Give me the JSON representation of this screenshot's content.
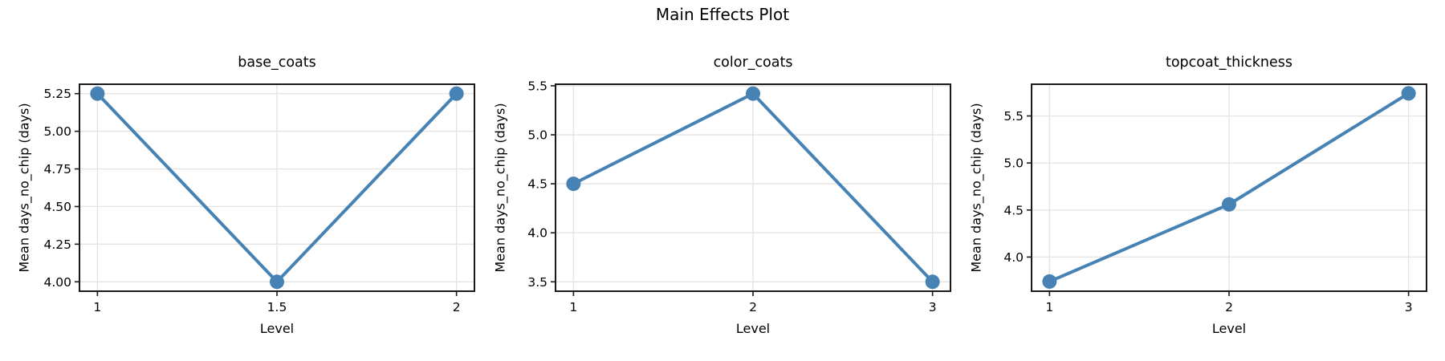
{
  "figure": {
    "title": "Main Effects Plot",
    "shared_xlabel": "Level",
    "shared_ylabel": "Mean days_no_chip (days)",
    "colors": {
      "series": "#4682b4",
      "grid": "#e4e4e4",
      "spine": "#1a1a1a",
      "text": "#000000",
      "background": "#ffffff"
    }
  },
  "chart_data": [
    {
      "type": "line",
      "title": "base_coats",
      "xlabel": "Level",
      "ylabel": "Mean days_no_chip (days)",
      "x": [
        1,
        1.5,
        2
      ],
      "y": [
        5.25,
        4.0,
        5.25
      ],
      "xlim": [
        0.95,
        2.05
      ],
      "ylim": [
        3.9375,
        5.3125
      ],
      "xticks": {
        "values": [
          1,
          1.5,
          2
        ],
        "labels": [
          "1",
          "1.5",
          "2"
        ]
      },
      "yticks": {
        "values": [
          4.0,
          4.25,
          4.5,
          4.75,
          5.0,
          5.25
        ],
        "labels": [
          "4.00",
          "4.25",
          "4.50",
          "4.75",
          "5.00",
          "5.25"
        ]
      },
      "grid": true,
      "legend": "none"
    },
    {
      "type": "line",
      "title": "color_coats",
      "xlabel": "Level",
      "ylabel": "Mean days_no_chip (days)",
      "x": [
        1,
        2,
        3
      ],
      "y": [
        4.5,
        5.42,
        3.5
      ],
      "xlim": [
        0.9,
        3.1
      ],
      "ylim": [
        3.404,
        5.516
      ],
      "xticks": {
        "values": [
          1,
          2,
          3
        ],
        "labels": [
          "1",
          "2",
          "3"
        ]
      },
      "yticks": {
        "values": [
          3.5,
          4.0,
          4.5,
          5.0,
          5.5
        ],
        "labels": [
          "3.5",
          "4.0",
          "4.5",
          "5.0",
          "5.5"
        ]
      },
      "grid": true,
      "legend": "none"
    },
    {
      "type": "line",
      "title": "topcoat_thickness",
      "xlabel": "Level",
      "ylabel": "Mean days_no_chip (days)",
      "x": [
        1,
        2,
        3
      ],
      "y": [
        3.74,
        4.56,
        5.74
      ],
      "xlim": [
        0.9,
        3.1
      ],
      "ylim": [
        3.637,
        5.837
      ],
      "xticks": {
        "values": [
          1,
          2,
          3
        ],
        "labels": [
          "1",
          "2",
          "3"
        ]
      },
      "yticks": {
        "values": [
          4.0,
          4.5,
          5.0,
          5.5
        ],
        "labels": [
          "4.0",
          "4.5",
          "5.0",
          "5.5"
        ]
      },
      "grid": true,
      "legend": "none"
    }
  ]
}
